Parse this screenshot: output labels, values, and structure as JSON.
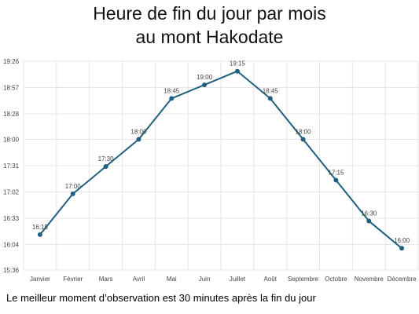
{
  "title_lines": [
    "Heure de fin du jour par mois",
    "au mont Hakodate"
  ],
  "note": "Le meilleur moment d’observation est 30 minutes après la fin du jour",
  "colors": {
    "line": "#1f5f7f",
    "grid": "#e6e6e6",
    "text": "#444444"
  },
  "chart_data": {
    "type": "line",
    "title": "Heure de fin du jour par mois au mont Hakodate",
    "categories": [
      "Janvier",
      "Février",
      "Mars",
      "Avril",
      "Mai",
      "Juin",
      "Juillet",
      "Août",
      "Septembre",
      "Octobre",
      "Novembre",
      "Décembre"
    ],
    "y_tick_labels": [
      "15:36",
      "16:04",
      "16:33",
      "17:02",
      "17:31",
      "18:00",
      "18:28",
      "18:57",
      "19:26"
    ],
    "y_ticks_minutes": [
      936,
      964,
      993,
      1022,
      1051,
      1080,
      1108,
      1137,
      1166
    ],
    "ylim_minutes": [
      936,
      1166
    ],
    "series": [
      {
        "values_minutes": [
          975,
          1020,
          1050,
          1080,
          1125,
          1140,
          1155,
          1125,
          1080,
          1035,
          990,
          960
        ],
        "labels": [
          "16:15",
          "17:00",
          "17:30",
          "18:00",
          "18:45",
          "19:00",
          "19:15",
          "18:45",
          "18:00",
          "17:15",
          "16:30",
          "16:00"
        ]
      }
    ],
    "grid": true,
    "legend": "none"
  }
}
